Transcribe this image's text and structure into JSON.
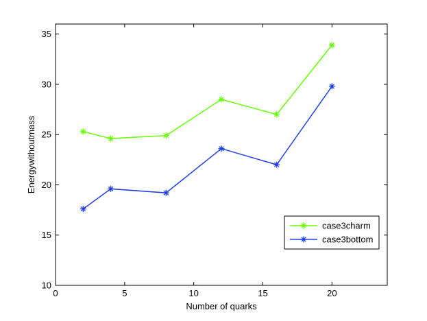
{
  "chart_data": {
    "type": "line",
    "title": "",
    "xlabel": "Number of quarks",
    "ylabel": "Energywithoutmass",
    "xlim": [
      0,
      24
    ],
    "ylim": [
      10,
      36
    ],
    "xticks": [
      0,
      5,
      10,
      15,
      20
    ],
    "yticks": [
      10,
      15,
      20,
      25,
      30,
      35
    ],
    "grid": false,
    "legend_position": "lower-right",
    "marker": "asterisk",
    "series": [
      {
        "name": "case3charm",
        "color": "#66ff00",
        "x": [
          2,
          4,
          8,
          12,
          16,
          20
        ],
        "y": [
          25.3,
          24.6,
          24.9,
          28.5,
          27.0,
          33.9
        ]
      },
      {
        "name": "case3bottom",
        "color": "#1f3fe8",
        "x": [
          2,
          4,
          8,
          12,
          16,
          20
        ],
        "y": [
          17.6,
          19.6,
          19.2,
          23.6,
          22.0,
          29.8
        ]
      }
    ]
  }
}
